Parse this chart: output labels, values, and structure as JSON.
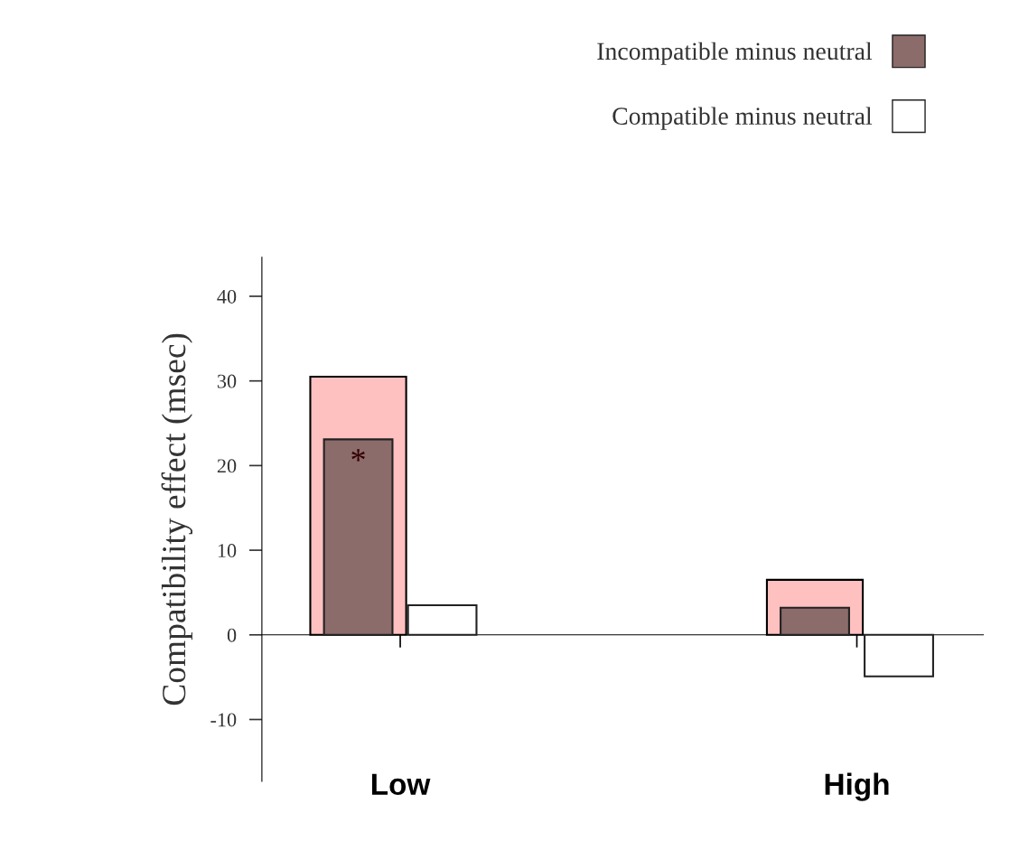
{
  "chart_data": {
    "type": "bar",
    "ylabel": "Compatibility effect (msec)",
    "categories": [
      "Low",
      "High"
    ],
    "series": [
      {
        "color": "#ffc0c0",
        "values": [
          30.5,
          6.5
        ]
      },
      {
        "name": "Incompatible minus neutral",
        "color": "#8c6b6b",
        "values": [
          23.1,
          3.2
        ]
      },
      {
        "name": "Compatible minus neutral",
        "color": "#ffffff",
        "values": [
          3.5,
          -4.9
        ]
      }
    ],
    "ylim": [
      -17.3,
      44.6
    ],
    "yticks": [
      -10,
      0,
      10,
      20,
      30,
      40
    ],
    "annotations": [
      "*"
    ],
    "legend": "top right"
  }
}
